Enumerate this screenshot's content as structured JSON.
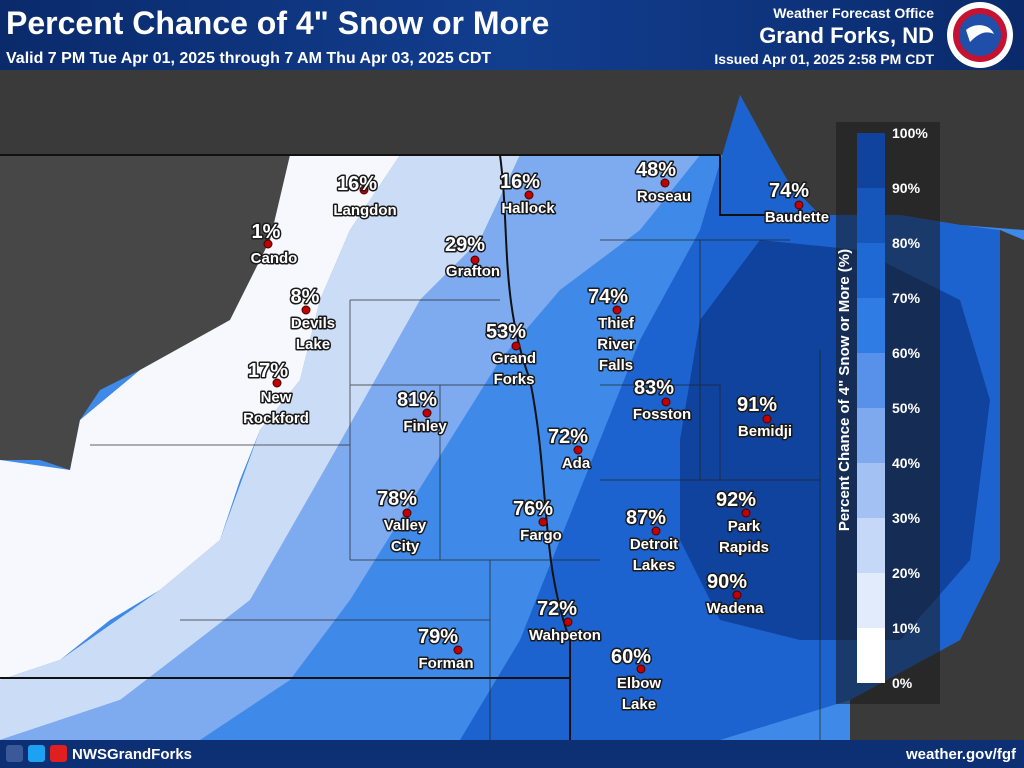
{
  "header": {
    "title": "Percent Chance of 4\" Snow or More",
    "subtitle": "Valid 7 PM Tue Apr 01, 2025 through 7 AM Thu Apr 03, 2025 CDT",
    "office_label": "Weather Forecast Office",
    "office": "Grand Forks, ND",
    "issued": "Issued Apr 01, 2025 2:58 PM CDT"
  },
  "cities": [
    {
      "chance": "16%",
      "name": [
        "Langdon"
      ]
    },
    {
      "chance": "16%",
      "name": [
        "Hallock"
      ]
    },
    {
      "chance": "48%",
      "name": [
        "Roseau"
      ]
    },
    {
      "chance": "74%",
      "name": [
        "Baudette"
      ]
    },
    {
      "chance": "1%",
      "name": [
        "Cando"
      ]
    },
    {
      "chance": "29%",
      "name": [
        "Grafton"
      ]
    },
    {
      "chance": "8%",
      "name": [
        "Devils",
        "Lake"
      ]
    },
    {
      "chance": "74%",
      "name": [
        "Thief",
        "River",
        "Falls"
      ]
    },
    {
      "chance": "53%",
      "name": [
        "Grand",
        "Forks"
      ]
    },
    {
      "chance": "17%",
      "name": [
        "New",
        "Rockford"
      ]
    },
    {
      "chance": "83%",
      "name": [
        "Fosston"
      ]
    },
    {
      "chance": "91%",
      "name": [
        "Bemidji"
      ]
    },
    {
      "chance": "81%",
      "name": [
        "Finley"
      ]
    },
    {
      "chance": "72%",
      "name": [
        "Ada"
      ]
    },
    {
      "chance": "78%",
      "name": [
        "Valley",
        "City"
      ]
    },
    {
      "chance": "76%",
      "name": [
        "Fargo"
      ]
    },
    {
      "chance": "92%",
      "name": [
        "Park",
        "Rapids"
      ]
    },
    {
      "chance": "87%",
      "name": [
        "Detroit",
        "Lakes"
      ]
    },
    {
      "chance": "90%",
      "name": [
        "Wadena"
      ]
    },
    {
      "chance": "72%",
      "name": [
        "Wahpeton"
      ]
    },
    {
      "chance": "79%",
      "name": [
        "Forman"
      ]
    },
    {
      "chance": "60%",
      "name": [
        "Elbow",
        "Lake"
      ]
    }
  ],
  "legend": {
    "title": "Percent Chance of 4\" Snow or More (%)",
    "ticks": [
      "0%",
      "10%",
      "20%",
      "30%",
      "40%",
      "50%",
      "60%",
      "70%",
      "80%",
      "90%",
      "100%"
    ],
    "colors": [
      "#ffffff",
      "#e2ebfb",
      "#c5d8f7",
      "#a3c1f3",
      "#7ea9ef",
      "#5891ea",
      "#2f7ce4",
      "#1e69d4",
      "#1656bb",
      "#10439d",
      "#0b2f7e"
    ]
  },
  "footer": {
    "social": "NWSGrandForks",
    "url": "weather.gov/fgf"
  }
}
